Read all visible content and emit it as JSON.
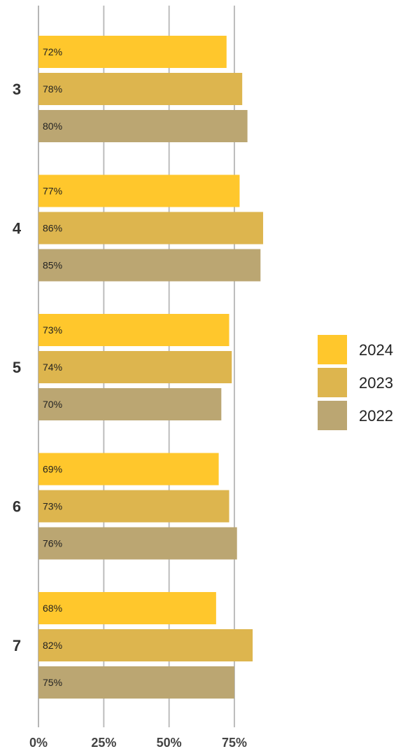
{
  "chart_data": {
    "type": "bar",
    "orientation": "horizontal",
    "categories": [
      "3",
      "4",
      "5",
      "6",
      "7"
    ],
    "series": [
      {
        "name": "2024",
        "color": "#FFC72C",
        "values": [
          72,
          77,
          73,
          69,
          68
        ],
        "labels": [
          "72%",
          "77%",
          "73%",
          "69%",
          "68%"
        ]
      },
      {
        "name": "2023",
        "color": "#DDB54E",
        "values": [
          78,
          86,
          74,
          73,
          82
        ],
        "labels": [
          "78%",
          "86%",
          "74%",
          "73%",
          "82%"
        ]
      },
      {
        "name": "2022",
        "color": "#BBA672",
        "values": [
          80,
          85,
          70,
          76,
          75
        ],
        "labels": [
          "80%",
          "85%",
          "70%",
          "76%",
          "75%"
        ]
      }
    ],
    "xlim": [
      0,
      100
    ],
    "xticks": [
      0,
      25,
      50,
      75
    ],
    "xtick_labels": [
      "0%",
      "25%",
      "50%",
      "75%"
    ],
    "grid": true,
    "legend_position": "right"
  }
}
